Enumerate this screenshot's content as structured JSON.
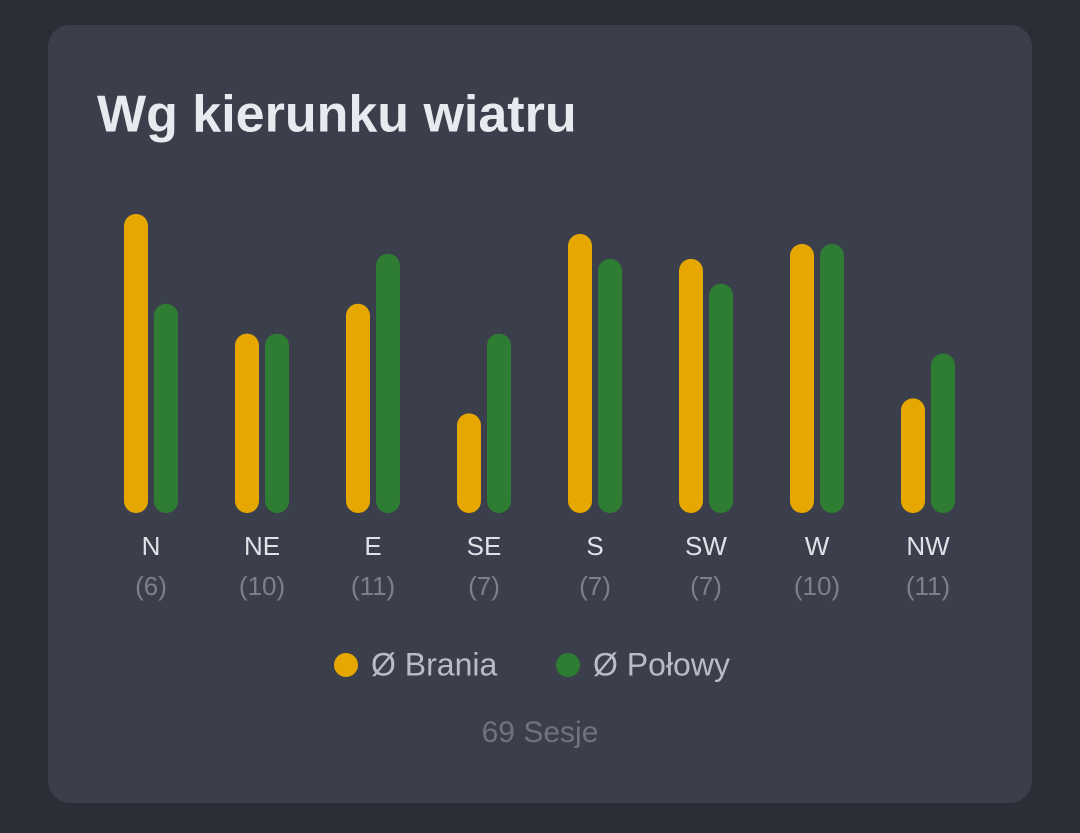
{
  "chart_data": {
    "type": "bar",
    "title": "Wg kierunku wiatru",
    "categories": [
      "N",
      "NE",
      "E",
      "SE",
      "S",
      "SW",
      "W",
      "NW"
    ],
    "category_notes": [
      "(6)",
      "(10)",
      "(11)",
      "(7)",
      "(7)",
      "(7)",
      "(10)",
      "(11)"
    ],
    "series": [
      {
        "name": "Ø Brania",
        "color": "#e6a800",
        "values": [
          3.0,
          1.8,
          2.1,
          1.0,
          2.8,
          2.55,
          2.7,
          1.15
        ]
      },
      {
        "name": "Ø Połowy",
        "color": "#2e7d32",
        "values": [
          2.1,
          1.8,
          2.6,
          1.8,
          2.55,
          2.3,
          2.7,
          1.6
        ]
      }
    ],
    "footer": "69 Sesje"
  }
}
